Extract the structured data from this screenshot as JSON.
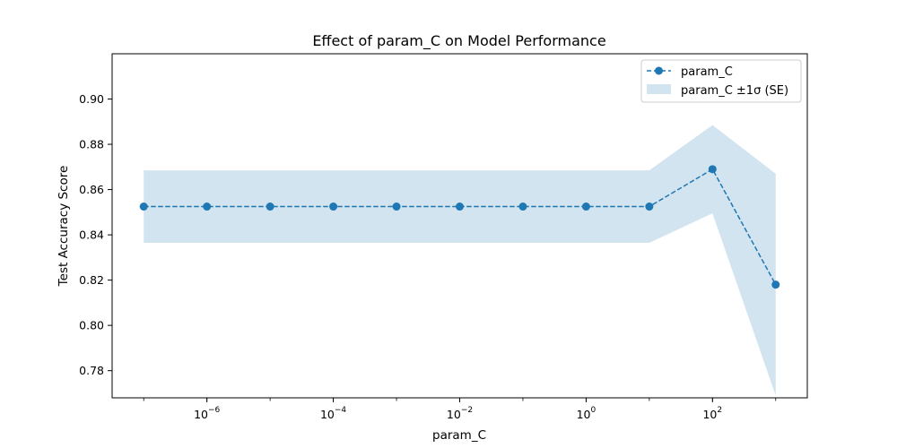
{
  "chart_data": {
    "type": "line",
    "title": "Effect of param_C on Model Performance",
    "xlabel": "param_C",
    "ylabel": "Test Accuracy Score",
    "x_scale": "log",
    "x": [
      1e-07,
      1e-06,
      1e-05,
      0.0001,
      0.001,
      0.01,
      0.1,
      1,
      10,
      100,
      1000
    ],
    "x_ticks": [
      {
        "base": "10",
        "exp": "−6",
        "value": 1e-06
      },
      {
        "base": "10",
        "exp": "−4",
        "value": 0.0001
      },
      {
        "base": "10",
        "exp": "−2",
        "value": 0.01
      },
      {
        "base": "10",
        "exp": "0",
        "value": 1
      },
      {
        "base": "10",
        "exp": "2",
        "value": 100
      }
    ],
    "y_ticks": [
      "0.78",
      "0.80",
      "0.82",
      "0.84",
      "0.86",
      "0.88",
      "0.90"
    ],
    "ylim": [
      0.768,
      0.92
    ],
    "xlim_log10": [
      -7.5,
      3.5
    ],
    "grid": false,
    "legend_position": "top-right",
    "series": [
      {
        "name": "param_C",
        "values": [
          0.8525,
          0.8525,
          0.8525,
          0.8525,
          0.8525,
          0.8525,
          0.8525,
          0.8525,
          0.8525,
          0.869,
          0.818
        ],
        "color": "#1f77b4",
        "style": "dashed",
        "marker": "circle"
      }
    ],
    "band": {
      "name": "param_C ±1σ (SE)",
      "lower": [
        0.8365,
        0.8365,
        0.8365,
        0.8365,
        0.8365,
        0.8365,
        0.8365,
        0.8365,
        0.8365,
        0.8495,
        0.769
      ],
      "upper": [
        0.8685,
        0.8685,
        0.8685,
        0.8685,
        0.8685,
        0.8685,
        0.8685,
        0.8685,
        0.8685,
        0.8885,
        0.867
      ],
      "color": "#1f77b4",
      "opacity": 0.2
    }
  }
}
